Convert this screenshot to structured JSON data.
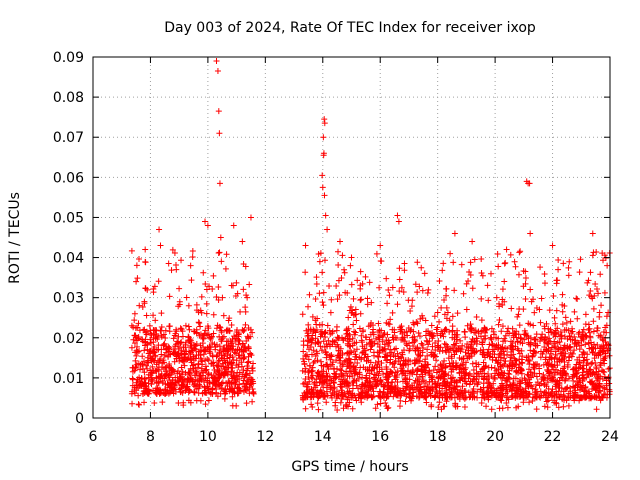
{
  "chart_data": {
    "type": "scatter",
    "title": "Day 003 of 2024, Rate Of TEC Index for receiver ixop",
    "xlabel": "GPS time / hours",
    "ylabel": "ROTI / TECUs",
    "xlim": [
      6,
      24
    ],
    "ylim": [
      0,
      0.09
    ],
    "xticks": [
      "6",
      "8",
      "10",
      "12",
      "14",
      "16",
      "18",
      "20",
      "22",
      "24"
    ],
    "yticks": [
      "0",
      "0.01",
      "0.02",
      "0.03",
      "0.04",
      "0.05",
      "0.06",
      "0.07",
      "0.08",
      "0.09"
    ],
    "grid": true,
    "marker": "+",
    "color": "#ff0000",
    "data_segments": [
      {
        "x_start": 7.35,
        "x_end": 11.6,
        "typical_min": 0.006,
        "typical_max": 0.022
      },
      {
        "x_start": 13.3,
        "x_end": 24.0,
        "typical_min": 0.005,
        "typical_max": 0.022
      }
    ],
    "spikes": [
      {
        "x": 7.5,
        "y": 0.034
      },
      {
        "x": 8.3,
        "y": 0.047
      },
      {
        "x": 8.35,
        "y": 0.043
      },
      {
        "x": 8.9,
        "y": 0.037
      },
      {
        "x": 9.4,
        "y": 0.038
      },
      {
        "x": 9.9,
        "y": 0.049
      },
      {
        "x": 10.0,
        "y": 0.048
      },
      {
        "x": 10.3,
        "y": 0.089
      },
      {
        "x": 10.35,
        "y": 0.0865
      },
      {
        "x": 10.38,
        "y": 0.0765
      },
      {
        "x": 10.4,
        "y": 0.071
      },
      {
        "x": 10.42,
        "y": 0.0585
      },
      {
        "x": 10.45,
        "y": 0.045
      },
      {
        "x": 10.9,
        "y": 0.048
      },
      {
        "x": 11.2,
        "y": 0.044
      },
      {
        "x": 11.5,
        "y": 0.05
      },
      {
        "x": 13.4,
        "y": 0.043
      },
      {
        "x": 13.9,
        "y": 0.039
      },
      {
        "x": 14.05,
        "y": 0.0745
      },
      {
        "x": 14.07,
        "y": 0.0735
      },
      {
        "x": 14.02,
        "y": 0.07
      },
      {
        "x": 14.04,
        "y": 0.066
      },
      {
        "x": 14.03,
        "y": 0.0655
      },
      {
        "x": 13.98,
        "y": 0.0605
      },
      {
        "x": 14.0,
        "y": 0.0575
      },
      {
        "x": 14.06,
        "y": 0.0555
      },
      {
        "x": 14.1,
        "y": 0.0505
      },
      {
        "x": 14.15,
        "y": 0.047
      },
      {
        "x": 14.6,
        "y": 0.044
      },
      {
        "x": 15.0,
        "y": 0.04
      },
      {
        "x": 16.0,
        "y": 0.043
      },
      {
        "x": 16.6,
        "y": 0.0505
      },
      {
        "x": 16.65,
        "y": 0.049
      },
      {
        "x": 18.6,
        "y": 0.046
      },
      {
        "x": 19.2,
        "y": 0.044
      },
      {
        "x": 20.4,
        "y": 0.042
      },
      {
        "x": 21.1,
        "y": 0.059
      },
      {
        "x": 21.15,
        "y": 0.0585
      },
      {
        "x": 21.2,
        "y": 0.0585
      },
      {
        "x": 21.22,
        "y": 0.046
      },
      {
        "x": 22.0,
        "y": 0.043
      },
      {
        "x": 23.4,
        "y": 0.046
      },
      {
        "x": 23.9,
        "y": 0.038
      },
      {
        "x": 14.5,
        "y": 0.002
      }
    ]
  }
}
